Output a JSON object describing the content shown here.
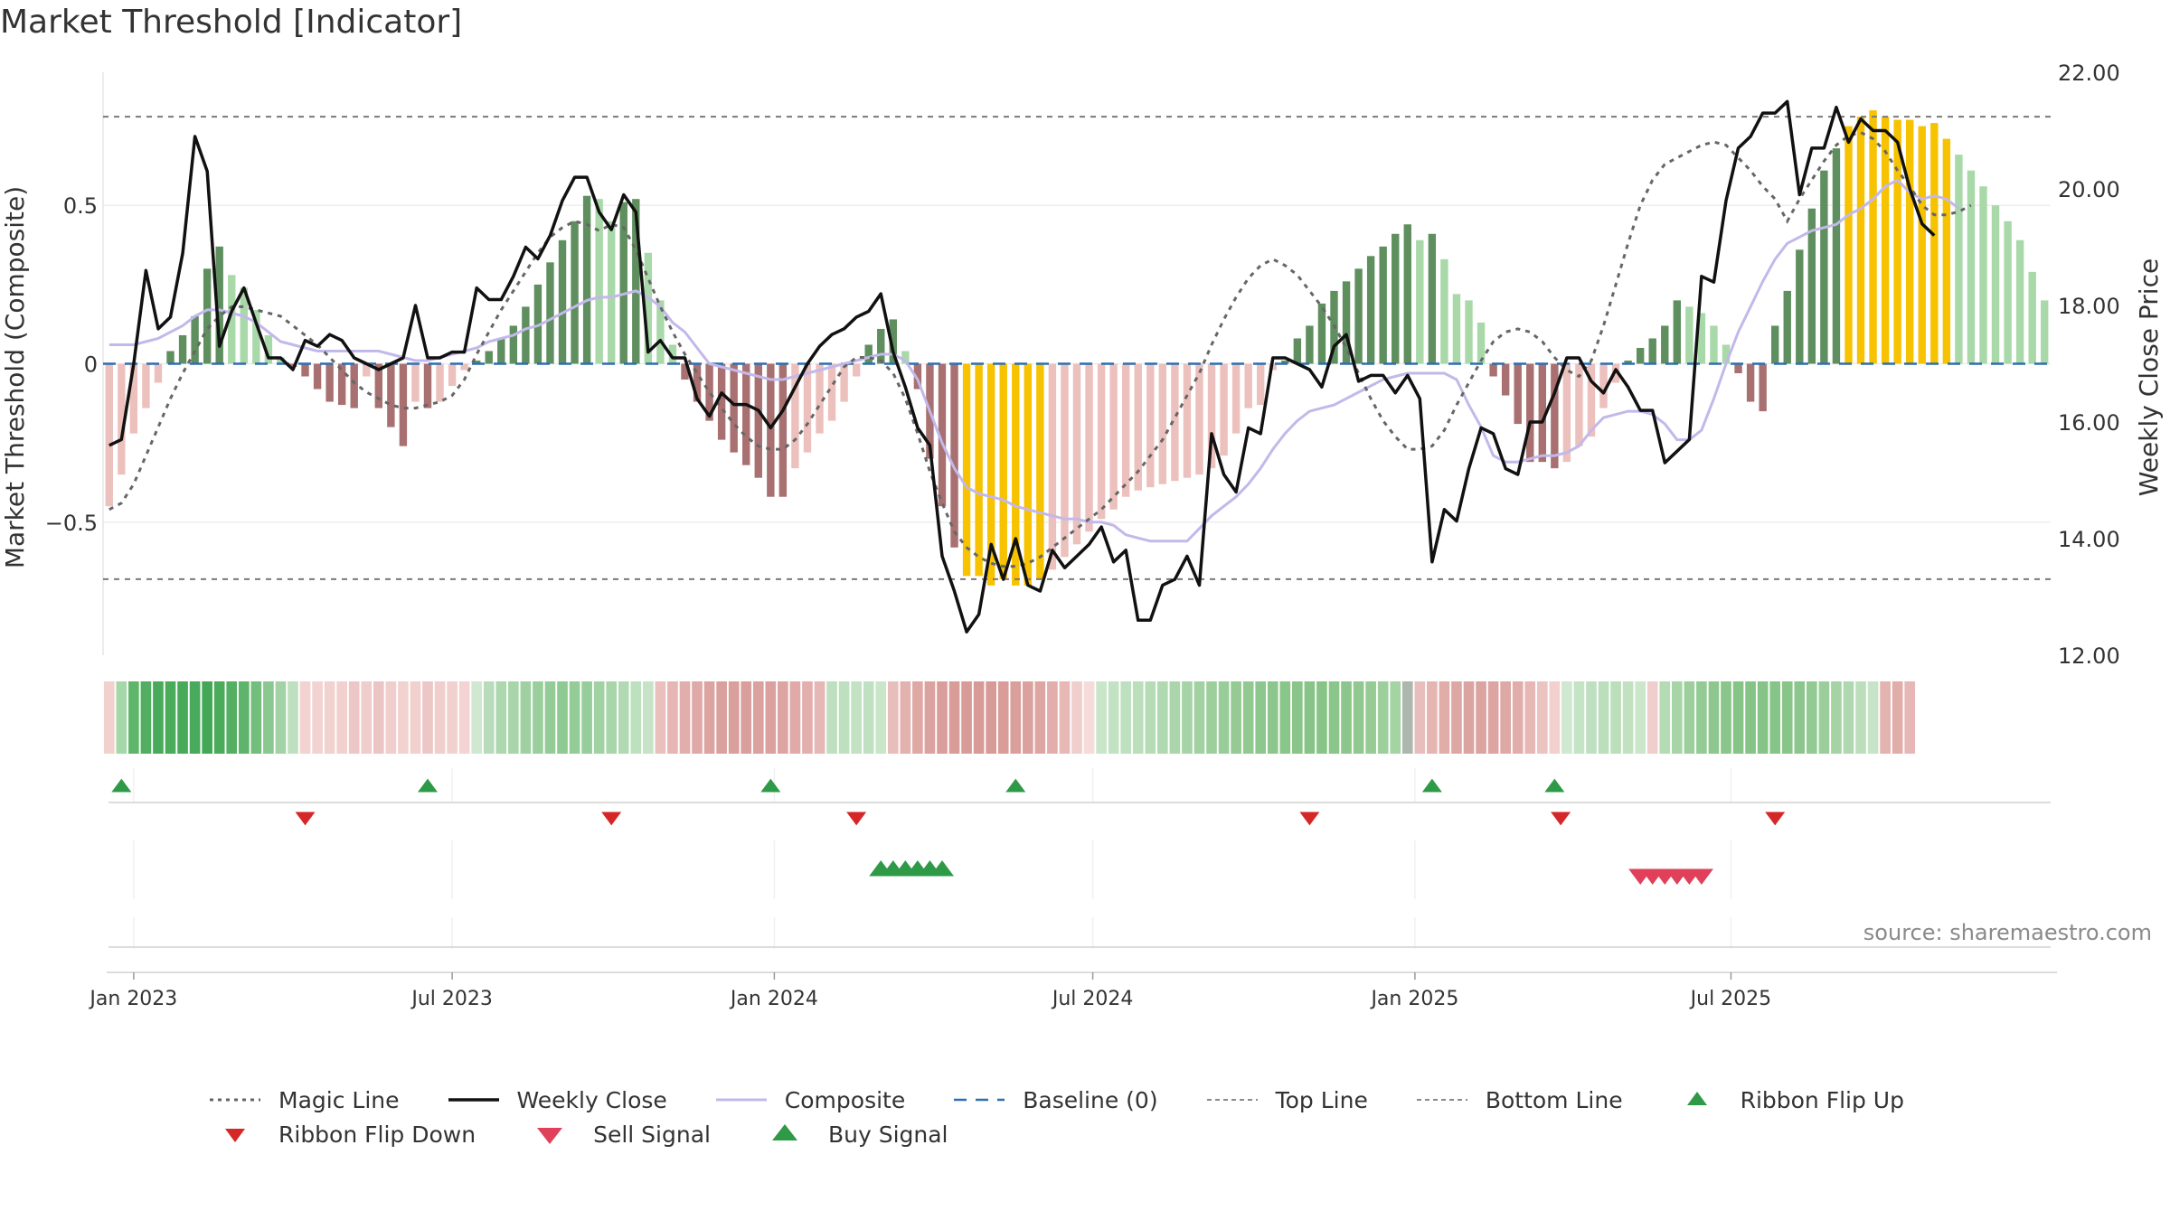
{
  "chart_data": {
    "type": "line",
    "title": "Market Threshold [Indicator]",
    "ylabel_left": "Market Threshold (Composite)",
    "ylabel_right": "Weekly Close Price",
    "ylim_left": [
      -0.92,
      0.92
    ],
    "ylim_right": [
      12.0,
      22.0
    ],
    "left_ticks": [
      "0.5",
      "0",
      "−0.5"
    ],
    "right_ticks": [
      "22.00",
      "20.00",
      "18.00",
      "16.00",
      "14.00",
      "12.00"
    ],
    "x_ticks": [
      "Jan 2023",
      "Jul 2023",
      "Jan 2024",
      "Jul 2024",
      "Jan 2025",
      "Jul 2025"
    ],
    "top_line": 0.78,
    "bottom_line": -0.68,
    "source_text": "source: sharemaestro.com",
    "colors": {
      "pos_dark": "#5f8f5f",
      "pos_light": "#a9d8a9",
      "neg_dark": "#a87070",
      "neg_light": "#ecc0bc",
      "extreme": "#f7c200",
      "close": "#111111",
      "composite": "#c3b8ea",
      "magic": "#666666",
      "baseline": "#2f6fae",
      "ribbon_up": "#2e9a47",
      "ribbon_down": "#d62728",
      "sell": "#e0405a",
      "buy": "#2e9a47"
    },
    "legend": [
      {
        "key": "magic",
        "label": "Magic Line"
      },
      {
        "key": "close",
        "label": "Weekly Close"
      },
      {
        "key": "composite",
        "label": "Composite"
      },
      {
        "key": "baseline",
        "label": "Baseline (0)"
      },
      {
        "key": "top",
        "label": "Top Line"
      },
      {
        "key": "bottom",
        "label": "Bottom Line"
      },
      {
        "key": "ribbon_up",
        "label": "Ribbon Flip Up"
      },
      {
        "key": "ribbon_down",
        "label": "Ribbon Flip Down"
      },
      {
        "key": "sell",
        "label": "Sell Signal"
      },
      {
        "key": "buy",
        "label": "Buy Signal"
      }
    ],
    "composite_bars": [
      -0.45,
      -0.35,
      -0.22,
      -0.14,
      -0.06,
      0.04,
      0.09,
      0.15,
      0.3,
      0.37,
      0.28,
      0.24,
      0.17,
      0.09,
      0.02,
      -0.01,
      -0.04,
      -0.08,
      -0.12,
      -0.13,
      -0.14,
      -0.04,
      -0.14,
      -0.2,
      -0.26,
      -0.12,
      -0.14,
      -0.12,
      -0.07,
      -0.02,
      0.01,
      0.04,
      0.08,
      0.12,
      0.18,
      0.25,
      0.32,
      0.39,
      0.45,
      0.53,
      0.52,
      0.45,
      0.51,
      0.52,
      0.35,
      0.2,
      0.06,
      -0.05,
      -0.12,
      -0.18,
      -0.24,
      -0.28,
      -0.32,
      -0.36,
      -0.42,
      -0.42,
      -0.33,
      -0.28,
      -0.22,
      -0.18,
      -0.12,
      -0.04,
      0.06,
      0.11,
      0.14,
      0.04,
      -0.08,
      -0.3,
      -0.45,
      -0.58,
      -0.67,
      -0.67,
      -0.7,
      -0.68,
      -0.7,
      -0.7,
      -0.68,
      -0.65,
      -0.61,
      -0.57,
      -0.53,
      -0.49,
      -0.46,
      -0.42,
      -0.4,
      -0.39,
      -0.38,
      -0.37,
      -0.36,
      -0.35,
      -0.33,
      -0.29,
      -0.22,
      -0.14,
      -0.13,
      -0.02,
      0.01,
      0.08,
      0.12,
      0.19,
      0.23,
      0.26,
      0.3,
      0.34,
      0.37,
      0.41,
      0.44,
      0.39,
      0.41,
      0.33,
      0.22,
      0.2,
      0.13,
      -0.04,
      -0.1,
      -0.19,
      -0.31,
      -0.31,
      -0.33,
      -0.31,
      -0.26,
      -0.23,
      -0.14,
      -0.06,
      0.01,
      0.05,
      0.08,
      0.12,
      0.2,
      0.18,
      0.16,
      0.12,
      0.06,
      -0.03,
      -0.12,
      -0.15,
      0.12,
      0.23,
      0.36,
      0.49,
      0.61,
      0.68,
      0.75,
      0.78,
      0.8,
      0.78,
      0.77,
      0.77,
      0.75,
      0.76,
      0.71,
      0.66,
      0.61,
      0.56,
      0.5,
      0.45,
      0.39,
      0.29,
      0.2
    ],
    "weekly_close": [
      15.6,
      15.7,
      17.0,
      18.6,
      17.6,
      17.8,
      18.9,
      20.9,
      20.3,
      17.3,
      17.9,
      18.3,
      17.7,
      17.1,
      17.1,
      16.9,
      17.4,
      17.3,
      17.5,
      17.4,
      17.1,
      17.0,
      16.9,
      17.0,
      17.1,
      18.0,
      17.1,
      17.1,
      17.2,
      17.2,
      18.3,
      18.1,
      18.1,
      18.5,
      19.0,
      18.8,
      19.2,
      19.8,
      20.2,
      20.2,
      19.6,
      19.3,
      19.9,
      19.6,
      17.2,
      17.4,
      17.1,
      17.1,
      16.4,
      16.1,
      16.5,
      16.3,
      16.3,
      16.2,
      15.9,
      16.2,
      16.6,
      17.0,
      17.3,
      17.5,
      17.6,
      17.8,
      17.9,
      18.2,
      17.2,
      16.6,
      15.9,
      15.6,
      13.7,
      13.1,
      12.4,
      12.7,
      13.9,
      13.3,
      14.0,
      13.2,
      13.1,
      13.8,
      13.5,
      13.7,
      13.9,
      14.2,
      13.6,
      13.8,
      12.6,
      12.6,
      13.2,
      13.3,
      13.7,
      13.2,
      15.8,
      15.1,
      14.8,
      15.9,
      15.8,
      17.1,
      17.1,
      17.0,
      16.9,
      16.6,
      17.3,
      17.5,
      16.7,
      16.8,
      16.8,
      16.5,
      16.8,
      16.4,
      13.6,
      14.5,
      14.3,
      15.2,
      15.9,
      15.8,
      15.2,
      15.1,
      16.0,
      16.0,
      16.5,
      17.1,
      17.1,
      16.7,
      16.5,
      16.9,
      16.6,
      16.2,
      16.2,
      15.3,
      15.5,
      15.7,
      18.5,
      18.4,
      19.8,
      20.7,
      20.9,
      21.3,
      21.3,
      21.5,
      19.9,
      20.7,
      20.7,
      21.4,
      20.8,
      21.2,
      21.0,
      21.0,
      20.8,
      20.0,
      19.4,
      19.2
    ],
    "composite_line": [
      0.06,
      0.06,
      0.06,
      0.07,
      0.08,
      0.1,
      0.12,
      0.15,
      0.17,
      0.17,
      0.16,
      0.15,
      0.13,
      0.1,
      0.07,
      0.06,
      0.05,
      0.04,
      0.04,
      0.04,
      0.04,
      0.04,
      0.04,
      0.03,
      0.02,
      0.01,
      0.01,
      0.02,
      0.03,
      0.04,
      0.05,
      0.07,
      0.08,
      0.09,
      0.11,
      0.12,
      0.14,
      0.16,
      0.18,
      0.2,
      0.21,
      0.21,
      0.22,
      0.23,
      0.21,
      0.18,
      0.13,
      0.1,
      0.05,
      0.0,
      -0.01,
      -0.02,
      -0.03,
      -0.04,
      -0.05,
      -0.05,
      -0.04,
      -0.03,
      -0.02,
      -0.01,
      0.0,
      0.01,
      0.02,
      0.03,
      0.03,
      0.01,
      -0.05,
      -0.15,
      -0.25,
      -0.33,
      -0.39,
      -0.41,
      -0.42,
      -0.43,
      -0.45,
      -0.46,
      -0.47,
      -0.48,
      -0.49,
      -0.49,
      -0.5,
      -0.5,
      -0.51,
      -0.54,
      -0.55,
      -0.56,
      -0.56,
      -0.56,
      -0.56,
      -0.52,
      -0.48,
      -0.45,
      -0.42,
      -0.38,
      -0.33,
      -0.27,
      -0.22,
      -0.18,
      -0.15,
      -0.14,
      -0.13,
      -0.11,
      -0.09,
      -0.07,
      -0.05,
      -0.04,
      -0.03,
      -0.03,
      -0.03,
      -0.03,
      -0.05,
      -0.13,
      -0.2,
      -0.29,
      -0.31,
      -0.31,
      -0.3,
      -0.29,
      -0.29,
      -0.28,
      -0.26,
      -0.21,
      -0.17,
      -0.16,
      -0.15,
      -0.15,
      -0.16,
      -0.19,
      -0.24,
      -0.24,
      -0.21,
      -0.11,
      0.0,
      0.1,
      0.18,
      0.26,
      0.33,
      0.38,
      0.4,
      0.42,
      0.43,
      0.44,
      0.47,
      0.49,
      0.52,
      0.56,
      0.58,
      0.54,
      0.52,
      0.53,
      0.52,
      0.49
    ],
    "magic_line": [
      -0.46,
      -0.44,
      -0.38,
      -0.29,
      -0.2,
      -0.11,
      -0.03,
      0.04,
      0.11,
      0.15,
      0.18,
      0.18,
      0.17,
      0.16,
      0.15,
      0.12,
      0.09,
      0.06,
      0.02,
      -0.02,
      -0.06,
      -0.09,
      -0.11,
      -0.13,
      -0.14,
      -0.14,
      -0.13,
      -0.12,
      -0.1,
      -0.05,
      0.03,
      0.1,
      0.17,
      0.23,
      0.29,
      0.35,
      0.4,
      0.43,
      0.45,
      0.44,
      0.42,
      0.44,
      0.43,
      0.36,
      0.27,
      0.18,
      0.1,
      0.03,
      -0.03,
      -0.09,
      -0.14,
      -0.19,
      -0.23,
      -0.26,
      -0.27,
      -0.27,
      -0.24,
      -0.19,
      -0.13,
      -0.07,
      -0.01,
      0.02,
      0.02,
      0.01,
      -0.03,
      -0.11,
      -0.22,
      -0.34,
      -0.44,
      -0.53,
      -0.58,
      -0.61,
      -0.63,
      -0.64,
      -0.64,
      -0.63,
      -0.61,
      -0.58,
      -0.55,
      -0.52,
      -0.49,
      -0.46,
      -0.42,
      -0.38,
      -0.34,
      -0.29,
      -0.24,
      -0.17,
      -0.1,
      -0.03,
      0.06,
      0.14,
      0.21,
      0.27,
      0.31,
      0.33,
      0.31,
      0.28,
      0.23,
      0.18,
      0.12,
      0.05,
      -0.03,
      -0.11,
      -0.18,
      -0.23,
      -0.27,
      -0.27,
      -0.26,
      -0.21,
      -0.13,
      -0.06,
      0.01,
      0.07,
      0.1,
      0.11,
      0.1,
      0.07,
      0.02,
      -0.02,
      -0.04,
      0.01,
      0.12,
      0.25,
      0.38,
      0.5,
      0.58,
      0.63,
      0.65,
      0.67,
      0.69,
      0.7,
      0.69,
      0.65,
      0.61,
      0.56,
      0.52,
      0.45,
      0.52,
      0.58,
      0.64,
      0.69,
      0.72,
      0.73,
      0.71,
      0.67,
      0.61,
      0.56,
      0.5,
      0.47,
      0.47,
      0.48,
      0.5
    ],
    "ribbon_colors": [
      "#f2d0ce",
      "#a5d8a8",
      "#5fb56a",
      "#52ae61",
      "#49aa5b",
      "#4aab5b",
      "#47aa59",
      "#48aa5a",
      "#44a758",
      "#4aab5b",
      "#54af63",
      "#5fb46c",
      "#73bd7d",
      "#8bc891",
      "#a3d2a6",
      "#bfe0c0",
      "#f3d3d1",
      "#f3d3d1",
      "#f0d2cf",
      "#f1d0ce",
      "#ecc7c5",
      "#efcdcb",
      "#ebc5c3",
      "#f0cecc",
      "#f2d2cf",
      "#f1d0ce",
      "#ecc7c5",
      "#f0cecc",
      "#f1d1ce",
      "#f3d4d2",
      "#cfe8cf",
      "#b8dcb9",
      "#add7ae",
      "#a8d5a9",
      "#9fd0a1",
      "#9acf9d",
      "#94cc97",
      "#8fca92",
      "#94cc97",
      "#97cd9a",
      "#a1d2a3",
      "#a8d5a9",
      "#b2d9b3",
      "#bde0be",
      "#c7e3c7",
      "#e9c0be",
      "#e6b6b4",
      "#e1aeab",
      "#dea9a6",
      "#dba4a1",
      "#daa09d",
      "#d99f9c",
      "#d99f9c",
      "#daa19e",
      "#daa19e",
      "#dca5a2",
      "#dfaaa7",
      "#e2afac",
      "#e6b7b5",
      "#bfe0c0",
      "#bde0be",
      "#c3e2c3",
      "#c0e1c1",
      "#c9e6c9",
      "#e8bebc",
      "#e3b2af",
      "#dea8a5",
      "#dba29f",
      "#d99e9b",
      "#d89c99",
      "#d89b98",
      "#d89a97",
      "#d89a97",
      "#d99c99",
      "#da9e9b",
      "#dba19e",
      "#dea6a3",
      "#e2adaa",
      "#e7b8b5",
      "#f0cecc",
      "#f5dbd9",
      "#c9e6c9",
      "#c3e2c3",
      "#bfe0c0",
      "#bbdebb",
      "#b6dcb6",
      "#b1d9b1",
      "#abd6ab",
      "#a6d4a6",
      "#a2d1a2",
      "#9dcf9d",
      "#98cc98",
      "#95ca95",
      "#91c991",
      "#8ec78e",
      "#8cc68c",
      "#8ac58a",
      "#89c489",
      "#88c488",
      "#88c488",
      "#8ac58a",
      "#8cc68c",
      "#90c890",
      "#96cb96",
      "#9dcf9d",
      "#a4d3a4",
      "#adb7ad",
      "#e8bebc",
      "#e4b5b2",
      "#e0ada9",
      "#dda7a4",
      "#dba4a1",
      "#dba4a1",
      "#dca5a2",
      "#dea8a5",
      "#e1adaa",
      "#e6b7b4",
      "#ebc3c1",
      "#f1d0ce",
      "#cfe8cf",
      "#c5e3c5",
      "#bfe0c0",
      "#bbdebb",
      "#bbdebb",
      "#c1e1c1",
      "#cbe6cb",
      "#f0cecc",
      "#b4dbb4",
      "#a8d5a8",
      "#9dcf9d",
      "#94cb94",
      "#8ec78e",
      "#8ac58a",
      "#87c487",
      "#86c386",
      "#86c386",
      "#87c487",
      "#89c589",
      "#8dc68d",
      "#93c993",
      "#9bce9b",
      "#a5d3a5",
      "#b0d8b0",
      "#bcdebc",
      "#c8e4c8",
      "#e3b3b0",
      "#e0ada9",
      "#e6b7b4"
    ],
    "ribbon_flip_up": [
      1,
      26,
      54,
      74,
      108,
      118
    ],
    "ribbon_flip_down": [
      16,
      41,
      61,
      98,
      118.5,
      136
    ],
    "buy_signal": [
      63,
      64,
      65,
      66,
      67,
      68
    ],
    "sell_signal": [
      125,
      126,
      127,
      128,
      129,
      130
    ]
  }
}
